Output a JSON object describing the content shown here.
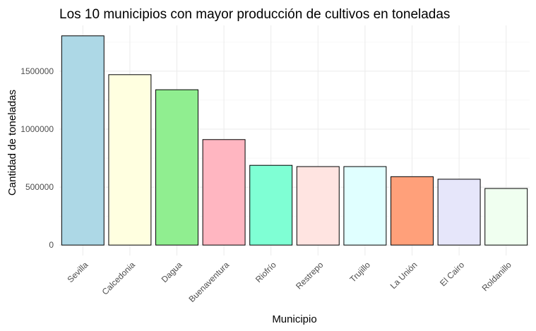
{
  "chart_data": {
    "type": "bar",
    "title": "Los 10 municipios con mayor producción de cultivos en toneladas",
    "xlabel": "Municipio",
    "ylabel": "Cantidad de toneladas",
    "categories": [
      "Sevilla",
      "Calcedonia",
      "Dagua",
      "Buenaventura",
      "Riofrío",
      "Restrepo",
      "Trujillo",
      "La Unión",
      "El Cairo",
      "Roldanillo"
    ],
    "values": [
      1805000,
      1470000,
      1340000,
      910000,
      688000,
      677000,
      677000,
      590000,
      568000,
      488000
    ],
    "colors": [
      "#add8e6",
      "#ffffe0",
      "#90ee90",
      "#ffb6c1",
      "#7fffd4",
      "#ffe4e1",
      "#e0ffff",
      "#ffa07a",
      "#e6e6fa",
      "#f0fff0"
    ],
    "yticks": [
      0,
      500000,
      1000000,
      1500000
    ],
    "ytick_labels": [
      "0",
      "500000",
      "1000000",
      "1500000"
    ],
    "ylim": [
      -90000,
      1895000
    ],
    "grid": true,
    "legend": "none"
  }
}
